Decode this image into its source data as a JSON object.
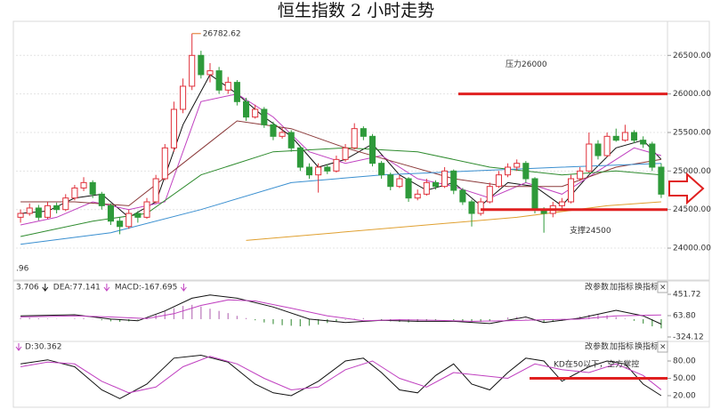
{
  "chart_data": [
    {
      "type": "candlestick",
      "title": "恒生指数 2 小时走势",
      "open": [
        24400,
        24450,
        24520,
        24400,
        24550,
        24500,
        24650,
        24780,
        24850,
        24700,
        24550,
        24350,
        24280,
        24450,
        24400,
        24600,
        24900,
        25300,
        25800,
        26100,
        26500,
        26250,
        26300,
        26050,
        26150,
        25900,
        25700,
        25800,
        25600,
        25450,
        25500,
        25300,
        25050,
        24950,
        25050,
        25000,
        25150,
        25300,
        25550,
        25450,
        25100,
        24950,
        24800,
        24900,
        24650,
        24700,
        24850,
        24800,
        25000,
        24750,
        24600,
        24450,
        24600,
        24800,
        24950,
        25050,
        25100,
        24900,
        24500,
        24450,
        24550,
        24600,
        24900,
        25000,
        25350,
        25200,
        25450,
        25400,
        25500,
        25400,
        25350,
        25050
      ],
      "high": [
        24500,
        24580,
        24560,
        24600,
        24590,
        24700,
        24820,
        24920,
        24880,
        24730,
        24580,
        24400,
        24500,
        24480,
        24650,
        24950,
        25350,
        25900,
        26200,
        26782.62,
        26560,
        26400,
        26350,
        26220,
        26180,
        25950,
        25860,
        25830,
        25640,
        25560,
        25530,
        25330,
        25100,
        25100,
        25090,
        25200,
        25350,
        25620,
        25580,
        25480,
        25130,
        24980,
        24950,
        24920,
        24760,
        24900,
        24880,
        25050,
        25020,
        24780,
        24630,
        24650,
        24850,
        25000,
        25100,
        25150,
        25130,
        24920,
        24530,
        24600,
        24650,
        24950,
        25050,
        25500,
        25400,
        25500,
        25550,
        25600,
        25530,
        25450,
        25380,
        25100
      ],
      "low": [
        24330,
        24420,
        24360,
        24380,
        24450,
        24480,
        24620,
        24740,
        24650,
        24500,
        24300,
        24180,
        24250,
        24330,
        24380,
        24580,
        24880,
        25250,
        25750,
        26050,
        26200,
        26150,
        26000,
        26000,
        25850,
        25650,
        25680,
        25560,
        25400,
        25420,
        25250,
        25000,
        24900,
        24720,
        24960,
        24980,
        25120,
        25280,
        25400,
        25060,
        24900,
        24750,
        24780,
        24600,
        24620,
        24680,
        24760,
        24780,
        24700,
        24560,
        24280,
        24420,
        24580,
        24780,
        24920,
        25000,
        24850,
        24450,
        24200,
        24400,
        24500,
        24580,
        24870,
        24980,
        25150,
        25180,
        25380,
        25380,
        25360,
        25300,
        25000,
        24650
      ],
      "close": [
        24450,
        24520,
        24400,
        24550,
        24500,
        24650,
        24780,
        24850,
        24700,
        24550,
        24350,
        24280,
        24450,
        24400,
        24600,
        24900,
        25300,
        25800,
        26100,
        26500,
        26250,
        26300,
        26050,
        26150,
        25900,
        25700,
        25800,
        25600,
        25450,
        25500,
        25300,
        25050,
        24950,
        25050,
        25000,
        25150,
        25300,
        25550,
        25450,
        25100,
        24950,
        24800,
        24900,
        24650,
        24700,
        24850,
        24800,
        25000,
        24750,
        24600,
        24450,
        24600,
        24800,
        24950,
        25050,
        25100,
        24900,
        24500,
        24450,
        24550,
        24600,
        24900,
        25000,
        25350,
        25200,
        25450,
        25400,
        25500,
        25400,
        25350,
        25050,
        24700
      ],
      "up_color": "#e0303a",
      "down_color": "#2e9a3a",
      "series": [
        {
          "color": "#111111",
          "x": [
            0,
            3,
            6,
            9,
            12,
            15,
            18,
            21,
            24,
            27,
            30,
            33,
            36,
            39,
            42,
            45,
            48,
            51,
            54,
            57,
            60,
            63,
            66,
            69,
            71
          ],
          "values": [
            24450,
            24480,
            24650,
            24700,
            24400,
            24600,
            25600,
            26250,
            26000,
            25700,
            25450,
            25050,
            25150,
            25350,
            24950,
            24750,
            24850,
            24550,
            24850,
            24800,
            24550,
            24950,
            25300,
            25400,
            25150
          ]
        },
        {
          "color": "#c040c0",
          "x": [
            0,
            4,
            8,
            12,
            16,
            20,
            24,
            28,
            32,
            36,
            40,
            44,
            48,
            52,
            56,
            60,
            64,
            68,
            71
          ],
          "values": [
            24300,
            24400,
            24600,
            24500,
            24600,
            25900,
            26000,
            25700,
            25250,
            25100,
            25200,
            24900,
            24800,
            24650,
            24850,
            24700,
            25000,
            25300,
            25200
          ]
        },
        {
          "color": "#8b3a3a",
          "x": [
            0,
            6,
            12,
            18,
            24,
            30,
            36,
            42,
            48,
            54,
            60,
            66,
            71
          ],
          "values": [
            24600,
            24600,
            24550,
            25100,
            25650,
            25550,
            25300,
            25100,
            24900,
            24800,
            24800,
            25050,
            25150
          ]
        },
        {
          "color": "#2e8b2e",
          "x": [
            0,
            8,
            14,
            20,
            28,
            36,
            44,
            52,
            60,
            66,
            71
          ],
          "values": [
            24150,
            24350,
            24450,
            24950,
            25250,
            25300,
            25250,
            25050,
            24950,
            25000,
            24950
          ]
        },
        {
          "color": "#3a8fd0",
          "x": [
            0,
            10,
            20,
            30,
            40,
            50,
            60,
            71
          ],
          "values": [
            24050,
            24200,
            24500,
            24850,
            24950,
            25000,
            25050,
            25100
          ]
        },
        {
          "color": "#e0a030",
          "x": [
            25,
            35,
            45,
            55,
            65,
            71
          ],
          "values": [
            24100,
            24200,
            24300,
            24400,
            24550,
            24600
          ]
        }
      ],
      "ylim": [
        23620,
        26930
      ],
      "yticks": [
        {
          "value": 24000,
          "label": "24000.00"
        },
        {
          "value": 24500,
          "label": "24500.00"
        },
        {
          "value": 25000,
          "label": "25000.00"
        },
        {
          "value": 25500,
          "label": "25500.00"
        },
        {
          "value": 26000,
          "label": "26000.00"
        },
        {
          "value": 26500,
          "label": "26500.00"
        }
      ],
      "grid": true,
      "levels": [
        {
          "value": 26000,
          "label": "压力26000",
          "color": "#e02020"
        },
        {
          "value": 24500,
          "label": "支撑24500",
          "color": "#e02020"
        }
      ],
      "min_label": ".96"
    },
    {
      "type": "macd",
      "header": [
        "3.706",
        "DEA:77.141",
        "MACD:-167.695"
      ],
      "buttons": [
        "改参数",
        "加指标",
        "换指标",
        "×"
      ],
      "hist": [
        20,
        25,
        15,
        10,
        5,
        0,
        10,
        15,
        5,
        -20,
        -40,
        -50,
        -40,
        -10,
        30,
        80,
        140,
        200,
        240,
        260,
        230,
        190,
        150,
        110,
        60,
        20,
        -20,
        -60,
        -90,
        -110,
        -120,
        -130,
        -120,
        -100,
        -70,
        -40,
        -10,
        10,
        20,
        0,
        -20,
        -40,
        -50,
        -60,
        -50,
        -30,
        -20,
        0,
        -20,
        -40,
        -60,
        -50,
        -30,
        0,
        30,
        40,
        10,
        -30,
        -60,
        -50,
        -30,
        10,
        50,
        80,
        90,
        70,
        40,
        10,
        -30,
        -80,
        -130,
        -167.695
      ],
      "up_color": "#c080c0",
      "down_color": "#5aa05a",
      "series": [
        {
          "color": "#111111",
          "x": [
            0,
            6,
            10,
            13,
            16,
            19,
            21,
            24,
            28,
            32,
            36,
            40,
            44,
            48,
            52,
            56,
            58,
            62,
            66,
            69,
            71
          ],
          "values": [
            60,
            80,
            0,
            -30,
            150,
            380,
            440,
            380,
            220,
            0,
            -60,
            -20,
            -40,
            -40,
            -80,
            40,
            -60,
            20,
            160,
            60,
            -90
          ]
        },
        {
          "color": "#c040c0",
          "x": [
            0,
            6,
            10,
            14,
            17,
            20,
            23,
            26,
            30,
            34,
            38,
            42,
            46,
            50,
            54,
            58,
            62,
            66,
            69,
            71
          ],
          "values": [
            40,
            60,
            40,
            10,
            100,
            250,
            350,
            330,
            200,
            60,
            -30,
            -10,
            -20,
            -40,
            -30,
            -10,
            0,
            60,
            70,
            77.141
          ]
        }
      ],
      "ylim": [
        -324.12,
        451.72
      ],
      "yticks": [
        451.72,
        {
          "value": 63.8,
          "label": "63.80"
        },
        -324.12
      ]
    },
    {
      "type": "line",
      "header": [
        "D:30.362"
      ],
      "buttons": [
        "改参数",
        "加指标",
        "换指标",
        "×"
      ],
      "series": [
        {
          "color": "#111111",
          "x": [
            0,
            3,
            6,
            9,
            11,
            14,
            17,
            20,
            23,
            26,
            28,
            30,
            33,
            36,
            38,
            40,
            42,
            44,
            46,
            48,
            50,
            52,
            54,
            56,
            58,
            60,
            63,
            65,
            67,
            69,
            71
          ],
          "values": [
            75,
            82,
            70,
            30,
            15,
            40,
            85,
            90,
            78,
            40,
            25,
            20,
            45,
            80,
            85,
            60,
            30,
            25,
            55,
            75,
            40,
            30,
            60,
            85,
            80,
            45,
            70,
            80,
            75,
            40,
            20
          ]
        },
        {
          "color": "#c040c0",
          "x": [
            0,
            3,
            6,
            9,
            12,
            15,
            18,
            21,
            24,
            27,
            30,
            33,
            36,
            39,
            42,
            45,
            48,
            51,
            54,
            57,
            60,
            63,
            66,
            69,
            71
          ],
          "values": [
            70,
            78,
            75,
            45,
            25,
            35,
            70,
            88,
            75,
            50,
            30,
            35,
            65,
            80,
            50,
            35,
            60,
            55,
            50,
            75,
            65,
            60,
            75,
            55,
            30.362
          ]
        }
      ],
      "ylim": [
        0,
        100
      ],
      "yticks": [
        {
          "value": 80,
          "label": "80.00"
        },
        {
          "value": 50,
          "label": "50.00"
        },
        {
          "value": 20,
          "label": "20.00"
        }
      ],
      "level": 50,
      "level_color": "#e02020",
      "annotation": "KD在50以下，空方掌控",
      "annotation_color": "#e02020"
    }
  ]
}
